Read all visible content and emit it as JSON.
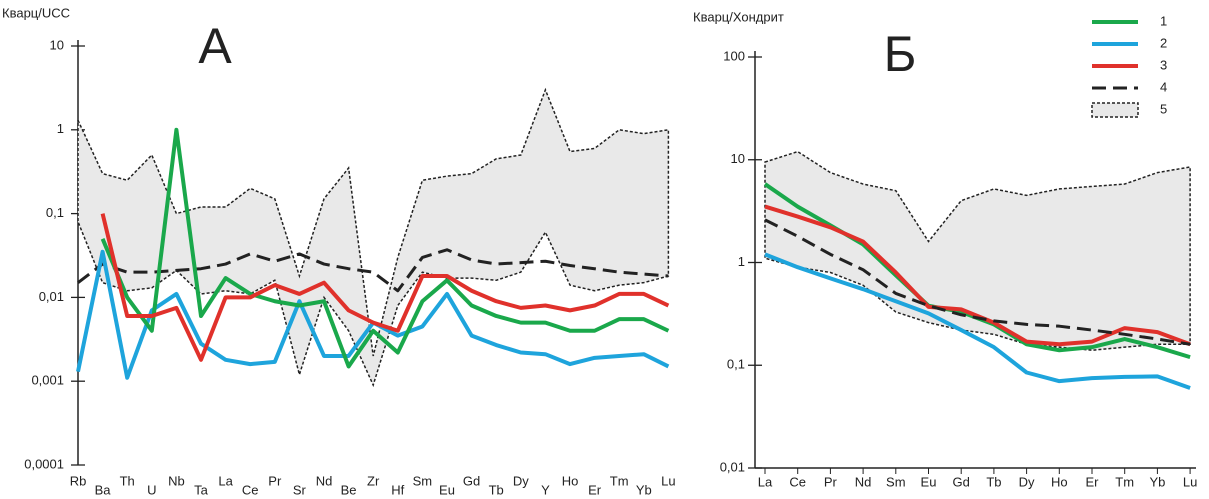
{
  "chart_data": [
    {
      "type": "line",
      "title": "А",
      "ylabel": "Кварц/UCC",
      "log_scale": true,
      "ylim": [
        0.0001,
        10
      ],
      "yticks": [
        10,
        1,
        {
          "value": 0.1,
          "label": "0,1"
        },
        {
          "value": 0.01,
          "label": "0,01"
        },
        {
          "value": 0.001,
          "label": "0,001"
        },
        {
          "value": 0.0001,
          "label": "0,0001"
        }
      ],
      "categories": [
        "Rb",
        "Ba",
        "Th",
        "U",
        "Nb",
        "Ta",
        "La",
        "Ce",
        "Pr",
        "Sr",
        "Nd",
        "Be",
        "Zr",
        "Hf",
        "Sm",
        "Eu",
        "Gd",
        "Tb",
        "Dy",
        "Y",
        "Ho",
        "Er",
        "Tm",
        "Yb",
        "Lu"
      ],
      "series": [
        {
          "color": "#e9e9e9",
          "field": true,
          "values": [
            1.3,
            0.3,
            0.25,
            0.5,
            0.1,
            0.12,
            0.12,
            0.2,
            0.15,
            0.018,
            0.15,
            0.35,
            0.002,
            0.03,
            0.25,
            0.28,
            0.3,
            0.45,
            0.5,
            3,
            0.55,
            0.6,
            1,
            0.9,
            1
          ],
          "lower": [
            0.08,
            0.015,
            0.012,
            0.013,
            0.021,
            0.011,
            0.012,
            0.011,
            0.016,
            0.0012,
            0.01,
            0.004,
            0.0009,
            0.008,
            0.02,
            0.017,
            0.017,
            0.016,
            0.02,
            0.06,
            0.014,
            0.012,
            0.014,
            0.015,
            0.018
          ]
        },
        {
          "color": "#222222",
          "dash": true,
          "values": [
            0.015,
            0.025,
            0.02,
            0.02,
            0.021,
            0.022,
            0.025,
            0.033,
            0.027,
            0.033,
            0.025,
            0.022,
            0.02,
            0.012,
            0.03,
            0.037,
            0.028,
            0.025,
            0.026,
            0.027,
            0.024,
            0.022,
            0.02,
            0.019,
            0.018
          ]
        },
        {
          "color": "#1ea4dc",
          "values": [
            0.0013,
            0.035,
            0.0011,
            0.007,
            0.011,
            0.0028,
            0.0018,
            0.0016,
            0.0017,
            0.009,
            0.002,
            0.002,
            0.005,
            0.0035,
            0.0045,
            0.011,
            0.0035,
            0.0027,
            0.0022,
            0.0021,
            0.0016,
            0.0019,
            0.002,
            0.0021,
            0.0015
          ]
        },
        {
          "color": "#1aa84b",
          "values": [
            null,
            0.05,
            0.01,
            0.004,
            1,
            0.006,
            0.017,
            0.011,
            0.009,
            0.008,
            0.009,
            0.0015,
            0.004,
            0.0022,
            0.009,
            0.016,
            0.008,
            0.006,
            0.005,
            0.005,
            0.004,
            0.004,
            0.0055,
            0.0055,
            0.004
          ]
        },
        {
          "color": "#e0312b",
          "values": [
            null,
            0.1,
            0.006,
            0.006,
            0.0075,
            0.0018,
            0.01,
            0.01,
            0.014,
            0.011,
            0.015,
            0.007,
            0.005,
            0.004,
            0.018,
            0.018,
            0.012,
            0.009,
            0.0075,
            0.008,
            0.007,
            0.008,
            0.011,
            0.011,
            0.008
          ]
        }
      ]
    },
    {
      "type": "line",
      "title": "Б",
      "ylabel": "Кварц/Хондрит",
      "log_scale": true,
      "legend": "upper right",
      "ylim": [
        0.01,
        100
      ],
      "yticks": [
        100,
        10,
        1,
        {
          "value": 0.1,
          "label": "0,1"
        },
        {
          "value": 0.01,
          "label": "0,01"
        }
      ],
      "categories": [
        "La",
        "Ce",
        "Pr",
        "Nd",
        "Sm",
        "Eu",
        "Gd",
        "Tb",
        "Dy",
        "Ho",
        "Er",
        "Tm",
        "Yb",
        "Lu"
      ],
      "series": [
        {
          "name": "1",
          "color": "#1aa84b",
          "values": [
            5.8,
            3.5,
            2.3,
            1.5,
            0.75,
            0.38,
            0.33,
            0.25,
            0.16,
            0.14,
            0.15,
            0.18,
            0.15,
            0.12
          ]
        },
        {
          "name": "2",
          "color": "#1ea4dc",
          "values": [
            1.2,
            0.9,
            0.7,
            0.55,
            0.42,
            0.32,
            0.22,
            0.15,
            0.085,
            0.07,
            0.075,
            0.077,
            0.078,
            0.06
          ]
        },
        {
          "name": "3",
          "color": "#e0312b",
          "values": [
            3.5,
            2.8,
            2.2,
            1.6,
            0.8,
            0.37,
            0.35,
            0.26,
            0.17,
            0.16,
            0.17,
            0.23,
            0.21,
            0.16
          ]
        },
        {
          "name": "4",
          "color": "#222222",
          "dash": true,
          "values": [
            2.6,
            1.8,
            1.2,
            0.85,
            0.5,
            0.38,
            0.31,
            0.27,
            0.25,
            0.24,
            0.22,
            0.2,
            0.18,
            0.16
          ]
        },
        {
          "name": "5",
          "color": "#e9e9e9",
          "field": true,
          "values": [
            9.5,
            12,
            7.5,
            5.8,
            5,
            1.6,
            4,
            5.2,
            4.5,
            5.2,
            5.5,
            5.8,
            7.5,
            8.5
          ],
          "lower": [
            1.1,
            0.9,
            0.8,
            0.6,
            0.33,
            0.26,
            0.22,
            0.2,
            0.16,
            0.15,
            0.14,
            0.15,
            0.16,
            0.16
          ]
        }
      ]
    }
  ]
}
